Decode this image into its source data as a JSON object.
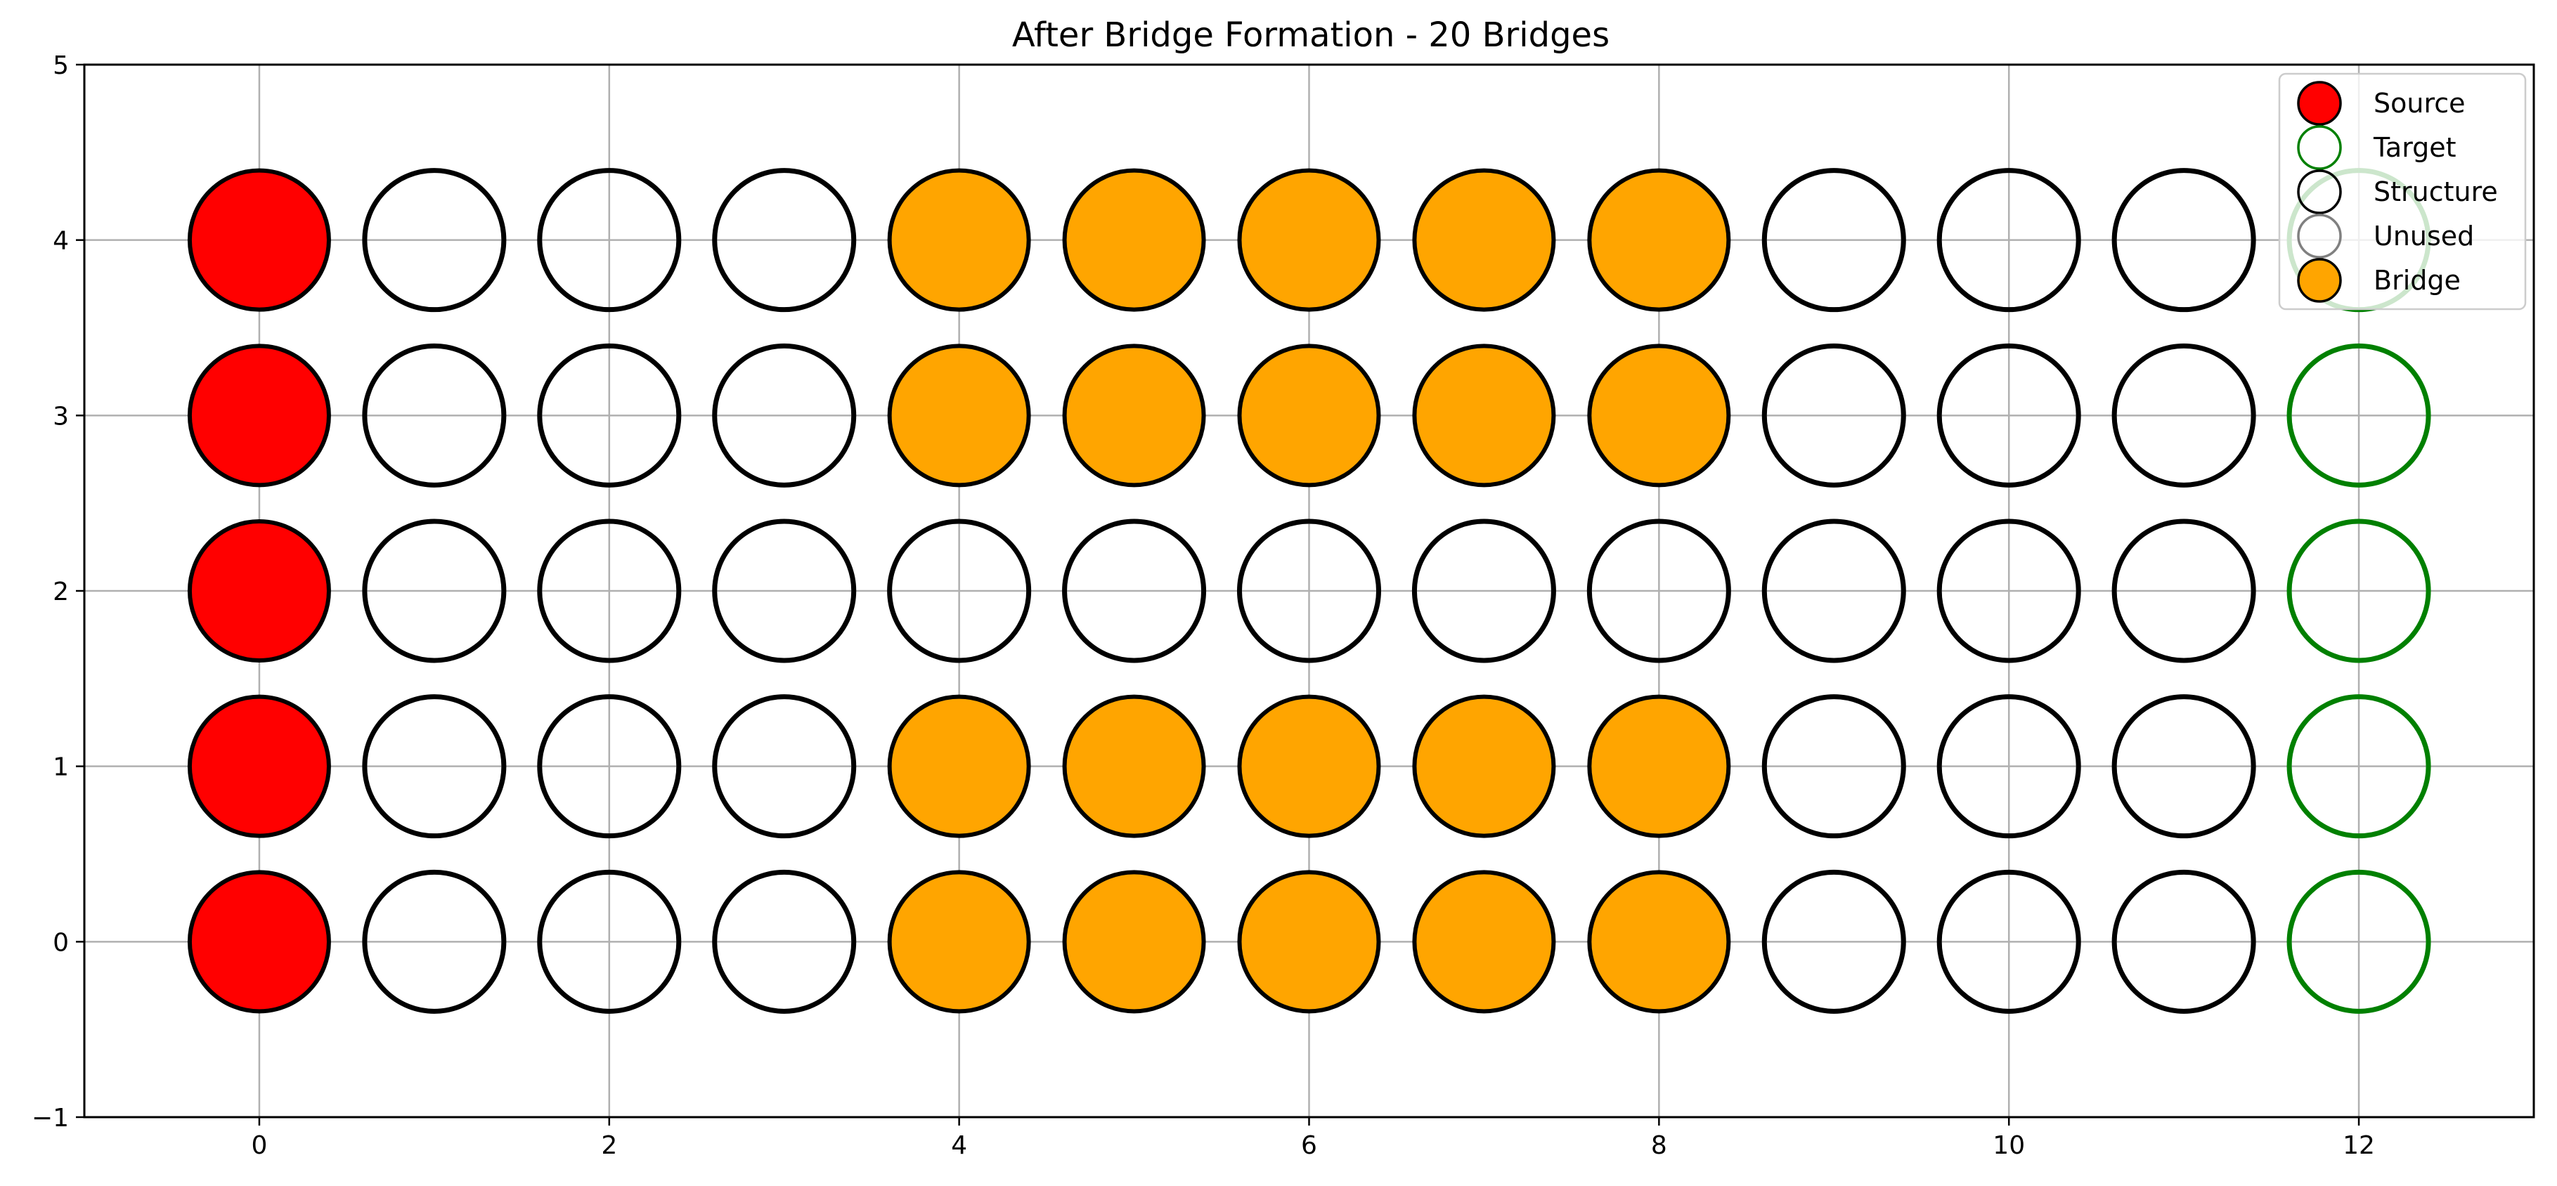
{
  "chart_data": {
    "type": "scatter",
    "title": "After Bridge Formation - 20 Bridges",
    "xlabel": "",
    "ylabel": "",
    "xlim": [
      -1,
      13
    ],
    "ylim": [
      -1,
      5
    ],
    "xticks": [
      0,
      2,
      4,
      6,
      8,
      10,
      12
    ],
    "yticks": [
      -1,
      0,
      1,
      2,
      3,
      4,
      5
    ],
    "grid": true,
    "legend_position": "top-right",
    "categories": [
      {
        "name": "Source",
        "fill": "#ff0000",
        "edge": "#000000"
      },
      {
        "name": "Target",
        "fill": "none",
        "edge": "#008000"
      },
      {
        "name": "Structure",
        "fill": "none",
        "edge": "#000000"
      },
      {
        "name": "Unused",
        "fill": "none",
        "edge": "#808080"
      },
      {
        "name": "Bridge",
        "fill": "#ffa500",
        "edge": "#000000"
      }
    ],
    "series": [
      {
        "name": "Source",
        "points": [
          [
            0,
            0
          ],
          [
            0,
            1
          ],
          [
            0,
            2
          ],
          [
            0,
            3
          ],
          [
            0,
            4
          ]
        ]
      },
      {
        "name": "Target",
        "points": [
          [
            12,
            0
          ],
          [
            12,
            1
          ],
          [
            12,
            2
          ],
          [
            12,
            3
          ],
          [
            12,
            4
          ]
        ]
      },
      {
        "name": "Structure",
        "points": [
          [
            1,
            0
          ],
          [
            2,
            0
          ],
          [
            3,
            0
          ],
          [
            9,
            0
          ],
          [
            10,
            0
          ],
          [
            11,
            0
          ],
          [
            1,
            1
          ],
          [
            2,
            1
          ],
          [
            3,
            1
          ],
          [
            9,
            1
          ],
          [
            10,
            1
          ],
          [
            11,
            1
          ],
          [
            1,
            2
          ],
          [
            2,
            2
          ],
          [
            3,
            2
          ],
          [
            4,
            2
          ],
          [
            5,
            2
          ],
          [
            6,
            2
          ],
          [
            7,
            2
          ],
          [
            8,
            2
          ],
          [
            9,
            2
          ],
          [
            10,
            2
          ],
          [
            11,
            2
          ],
          [
            1,
            3
          ],
          [
            2,
            3
          ],
          [
            3,
            3
          ],
          [
            9,
            3
          ],
          [
            10,
            3
          ],
          [
            11,
            3
          ],
          [
            1,
            4
          ],
          [
            2,
            4
          ],
          [
            3,
            4
          ],
          [
            9,
            4
          ],
          [
            10,
            4
          ],
          [
            11,
            4
          ]
        ]
      },
      {
        "name": "Unused",
        "points": []
      },
      {
        "name": "Bridge",
        "points": [
          [
            4,
            0
          ],
          [
            5,
            0
          ],
          [
            6,
            0
          ],
          [
            7,
            0
          ],
          [
            8,
            0
          ],
          [
            4,
            1
          ],
          [
            5,
            1
          ],
          [
            6,
            1
          ],
          [
            7,
            1
          ],
          [
            8,
            1
          ],
          [
            4,
            3
          ],
          [
            5,
            3
          ],
          [
            6,
            3
          ],
          [
            7,
            3
          ],
          [
            8,
            3
          ],
          [
            4,
            4
          ],
          [
            5,
            4
          ],
          [
            6,
            4
          ],
          [
            7,
            4
          ],
          [
            8,
            4
          ]
        ]
      }
    ]
  }
}
